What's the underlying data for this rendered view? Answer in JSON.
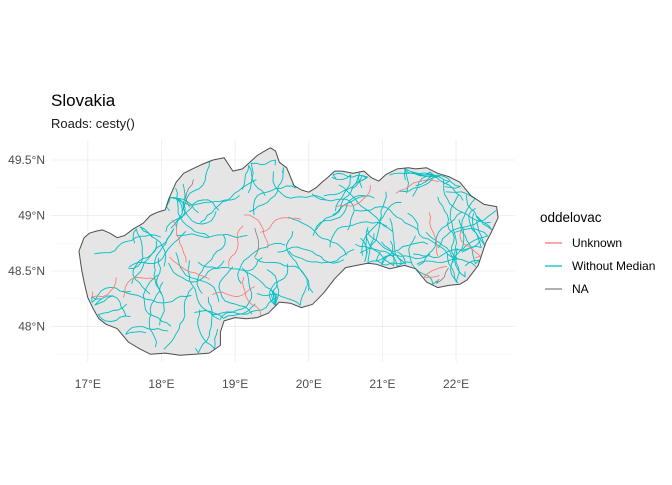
{
  "chart_data": {
    "type": "map",
    "title": "Slovakia",
    "subtitle": "Roads: cesty()",
    "x_axis": {
      "ticks": [
        17,
        18,
        19,
        20,
        21,
        22
      ],
      "tick_labels": [
        "17°E",
        "18°E",
        "19°E",
        "20°E",
        "21°E",
        "22°E"
      ]
    },
    "y_axis": {
      "ticks": [
        48.0,
        48.5,
        49.0,
        49.5
      ],
      "tick_labels": [
        "48°N",
        "48.5°N",
        "49°N",
        "49.5°N"
      ]
    },
    "xlim": [
      16.5,
      22.8
    ],
    "ylim": [
      47.68,
      49.68
    ],
    "grid": true,
    "legend": {
      "title": "oddelovac",
      "position": "right",
      "entries": [
        {
          "label": "Unknown",
          "color": "#F8766D"
        },
        {
          "label": "Without Median",
          "color": "#00BFC4"
        },
        {
          "label": "NA",
          "color": "#7F7F7F"
        }
      ]
    },
    "colors": {
      "land_fill": "#E5E5E5",
      "border": "#4D4D4D",
      "grid": "#EBEBEB"
    }
  }
}
